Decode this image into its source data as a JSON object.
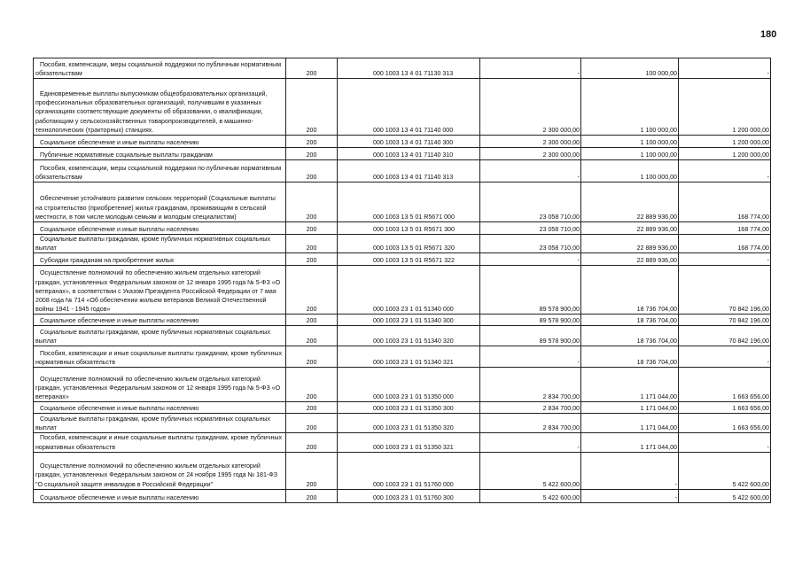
{
  "page_number": "180",
  "rows": [
    {
      "desc": "Пособия, компенсации, меры социальной поддержки по публичным нормативным обязательствам",
      "code": "200",
      "kbk": "000 1003 13 4 01 71130 313",
      "v1": "-",
      "v2": "100 000,00",
      "v3": "-"
    },
    {
      "desc": "Единовременные выплаты выпускникам общеобразовательных организаций, профессиональных образовательных организаций, получившим в указанных организациях соответствующие документы об образовании, о квалификации, работающим у сельскохозяйственных товаропроизводителей, в машинно-технологических (тракторных) станциях.",
      "code": "200",
      "kbk": "000 1003 13 4 01 71140 000",
      "v1": "2 300 000,00",
      "v2": "1 100 000,00",
      "v3": "1 200 000,00"
    },
    {
      "desc": "Социальное обеспечение и иные выплаты населению",
      "code": "200",
      "kbk": "000 1003 13 4 01 71140 300",
      "v1": "2 300 000,00",
      "v2": "1 100 000,00",
      "v3": "1 200 000,00"
    },
    {
      "desc": "Публичные нормативные социальные выплаты гражданам",
      "code": "200",
      "kbk": "000 1003 13 4 01 71140 310",
      "v1": "2 300 000,00",
      "v2": "1 100 000,00",
      "v3": "1 200 000,00"
    },
    {
      "desc": "Пособия, компенсации, меры социальной поддержки по публичным нормативным обязательствам",
      "code": "200",
      "kbk": "000 1003 13 4 01 71140 313",
      "v1": "-",
      "v2": "1 100 000,00",
      "v3": "-"
    },
    {
      "desc": "Обеспечение устойчивого развития сельских территорий (Социальные выплаты на строительство (приобретение) жилья гражданам, проживающим в сельской местности, в том числе молодым семьям и молодым специалистам)",
      "code": "200",
      "kbk": "000 1003 13 5 01 R5671 000",
      "v1": "23 058 710,00",
      "v2": "22 889 936,00",
      "v3": "168 774,00"
    },
    {
      "desc": "Социальное обеспечение и иные выплаты населению",
      "code": "200",
      "kbk": "000 1003 13 5 01 R5671 300",
      "v1": "23 058 710,00",
      "v2": "22 889 936,00",
      "v3": "168 774,00"
    },
    {
      "desc": "Социальные выплаты гражданам, кроме публичных нормативных социальных выплат",
      "code": "200",
      "kbk": "000 1003 13 5 01 R5671 320",
      "v1": "23 058 710,00",
      "v2": "22 889 936,00",
      "v3": "168 774,00"
    },
    {
      "desc": "Субсидии гражданам на приобретение жилья",
      "code": "200",
      "kbk": "000 1003 13 5 01 R5671 322",
      "v1": "-",
      "v2": "22 889 936,00",
      "v3": "-"
    },
    {
      "desc": "Осуществление полномочий по обеспечению жильем отдельных категорий граждан, установленных Федеральным законом от 12 января 1995 года № 5-ФЗ «О ветеранах», в соответствии с Указом Президента Российской Федерации от 7 мая 2008 года № 714 «Об обеспечении жильем ветеранов Великой Отечественной войны 1941 - 1945 годов»",
      "code": "200",
      "kbk": "000 1003 23 1 01 51340 000",
      "v1": "89 578 900,00",
      "v2": "18 736 704,00",
      "v3": "70 842 196,00"
    },
    {
      "desc": "Социальное обеспечение и иные выплаты населению",
      "code": "200",
      "kbk": "000 1003 23 1 01 51340 300",
      "v1": "89 578 900,00",
      "v2": "18 736 704,00",
      "v3": "70 842 196,00"
    },
    {
      "desc": "Социальные выплаты гражданам, кроме публичных нормативных социальных выплат",
      "code": "200",
      "kbk": "000 1003 23 1 01 51340 320",
      "v1": "89 578 900,00",
      "v2": "18 736 704,00",
      "v3": "70 842 196,00"
    },
    {
      "desc": "Пособия, компенсации и иные социальные выплаты гражданам, кроме публичных нормативных обязательств",
      "code": "200",
      "kbk": "000 1003 23 1 01 51340 321",
      "v1": "-",
      "v2": "18 736 704,00",
      "v3": "-"
    },
    {
      "desc": "Осуществление полномочий по обеспечению жильем отдельных категорий граждан, установленных Федеральным законом от 12 января 1995 года № 5-ФЗ «О ветеранах»",
      "code": "200",
      "kbk": "000 1003 23 1 01 51350 000",
      "v1": "2 834 700,00",
      "v2": "1 171 044,00",
      "v3": "1 663 656,00"
    },
    {
      "desc": "Социальное обеспечение и иные выплаты населению",
      "code": "200",
      "kbk": "000 1003 23 1 01 51350 300",
      "v1": "2 834 700,00",
      "v2": "1 171 044,00",
      "v3": "1 663 656,00"
    },
    {
      "desc": "Социальные выплаты гражданам, кроме публичных нормативных социальных выплат",
      "code": "200",
      "kbk": "000 1003 23 1 01 51350 320",
      "v1": "2 834 700,00",
      "v2": "1 171 044,00",
      "v3": "1 663 656,00"
    },
    {
      "desc": "Пособия, компенсации и иные социальные выплаты гражданам, кроме публичных нормативных обязательств",
      "code": "200",
      "kbk": "000 1003 23 1 01 51350 321",
      "v1": "-",
      "v2": "1 171 044,00",
      "v3": "-"
    },
    {
      "desc": "Осуществление полномочий по обеспечению жильем отдельных категорий граждан, установленных Федеральным законом от 24 ноября 1995 года № 181-ФЗ \"О социальной защите инвалидов в Российской Федерации\"",
      "code": "200",
      "kbk": "000 1003 23 1 01 51760 000",
      "v1": "5 422 600,00",
      "v2": "-",
      "v3": "5 422 600,00"
    },
    {
      "desc": "Социальное обеспечение и иные выплаты населению",
      "code": "200",
      "kbk": "000 1003 23 1 01 51760 300",
      "v1": "5 422 600,00",
      "v2": "-",
      "v3": "5 422 600,00"
    }
  ]
}
